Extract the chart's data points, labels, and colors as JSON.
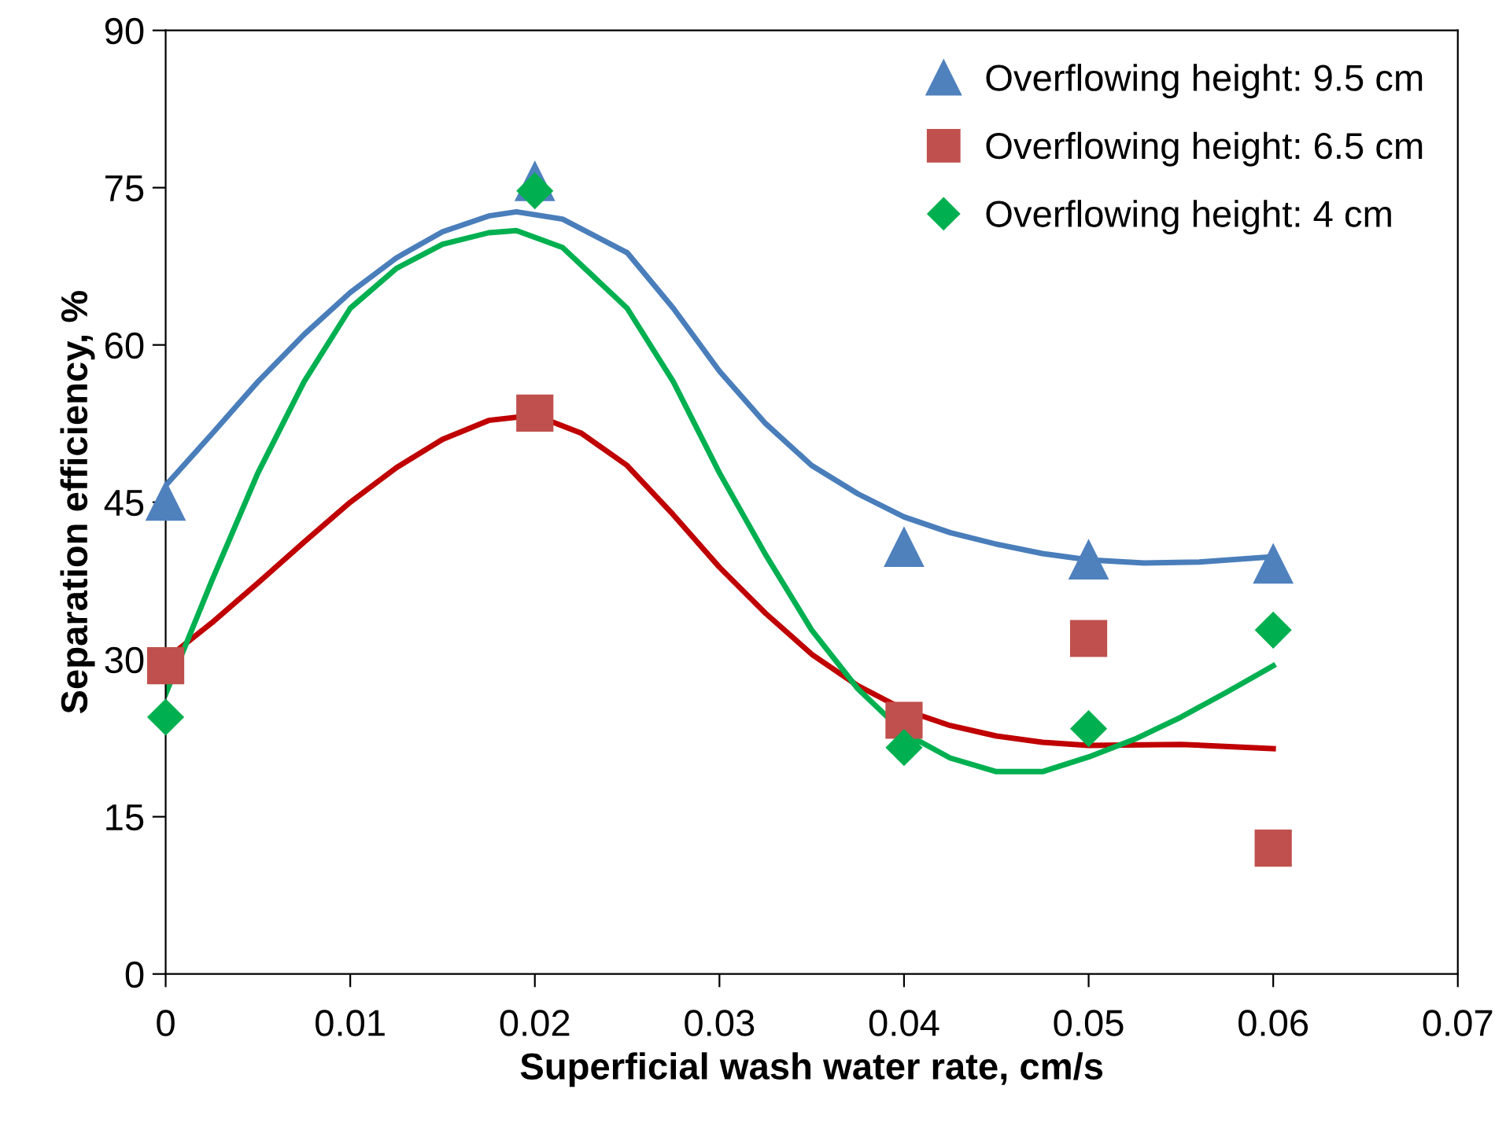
{
  "chart_data": {
    "type": "scatter",
    "xlabel": "Superficial wash water rate, cm/s",
    "ylabel": "Separation efficiency, %",
    "xlim": [
      0,
      0.07
    ],
    "xticks": [
      {
        "value": 0,
        "label": "0"
      },
      0.01,
      0.02,
      0.03,
      0.04,
      0.05,
      0.06,
      0.07
    ],
    "ylim": [
      0,
      90
    ],
    "yticks": [
      0,
      15,
      30,
      45,
      60,
      75,
      90
    ],
    "grid": false,
    "legend": "top right",
    "series": [
      {
        "name": "Overflowing height: 9.5 cm",
        "marker": "triangle",
        "color": "#4f81bd",
        "x": [
          0,
          0.02,
          0.04,
          0.05,
          0.06
        ],
        "values": [
          45.1,
          75.6,
          40.7,
          39.5,
          39.1
        ]
      },
      {
        "name": "Overflowing height: 6.5 cm",
        "marker": "square",
        "color": "#c0504d",
        "x": [
          0,
          0.02,
          0.04,
          0.05,
          0.06
        ],
        "values": [
          29.4,
          53.5,
          24.2,
          32.0,
          12.0
        ]
      },
      {
        "name": "Overflowing height: 4 cm",
        "marker": "diamond",
        "color": "#00b050",
        "x": [
          0,
          0.02,
          0.04,
          0.05,
          0.06
        ],
        "values": [
          24.5,
          74.7,
          21.6,
          23.4,
          32.8
        ]
      },
      {
        "type": "line",
        "color": "#4a7ebb",
        "x": [
          0,
          0.0025,
          0.005,
          0.0075,
          0.01,
          0.0125,
          0.015,
          0.0175,
          0.019,
          0.0215,
          0.025,
          0.0275,
          0.03,
          0.0325,
          0.035,
          0.0375,
          0.04,
          0.0425,
          0.045,
          0.0475,
          0.05,
          0.053,
          0.056,
          0.06
        ],
        "values": [
          46.6,
          51.5,
          56.5,
          61,
          65,
          68.3,
          70.8,
          72.3,
          72.7,
          72,
          68.8,
          63.5,
          57.5,
          52.5,
          48.5,
          45.8,
          43.6,
          42.1,
          41,
          40.1,
          39.5,
          39.2,
          39.3,
          39.8
        ]
      },
      {
        "type": "line",
        "color": "#c00000",
        "x": [
          0,
          0.0025,
          0.005,
          0.0075,
          0.01,
          0.0125,
          0.015,
          0.0175,
          0.02,
          0.0225,
          0.025,
          0.0275,
          0.03,
          0.0325,
          0.035,
          0.0375,
          0.04,
          0.0425,
          0.045,
          0.0475,
          0.05,
          0.055,
          0.06
        ],
        "values": [
          30,
          33.5,
          37.3,
          41.2,
          45,
          48.3,
          51,
          52.8,
          53.3,
          51.6,
          48.5,
          43.8,
          38.8,
          34.4,
          30.5,
          27.5,
          25.2,
          23.7,
          22.7,
          22.1,
          21.8,
          21.9,
          21.5
        ]
      },
      {
        "type": "line",
        "color": "#00b050",
        "x": [
          0,
          0.0025,
          0.005,
          0.0075,
          0.01,
          0.0125,
          0.015,
          0.0175,
          0.019,
          0.0215,
          0.025,
          0.0275,
          0.03,
          0.0325,
          0.035,
          0.0375,
          0.04,
          0.0425,
          0.045,
          0.0475,
          0.05,
          0.0525,
          0.055,
          0.0575,
          0.06
        ],
        "values": [
          26.7,
          37.5,
          47.8,
          56.5,
          63.5,
          67.3,
          69.6,
          70.7,
          70.9,
          69.3,
          63.5,
          56.5,
          47.8,
          40,
          32.8,
          27.2,
          23,
          20.6,
          19.3,
          19.3,
          20.7,
          22.4,
          24.5,
          26.9,
          29.4
        ]
      }
    ]
  }
}
